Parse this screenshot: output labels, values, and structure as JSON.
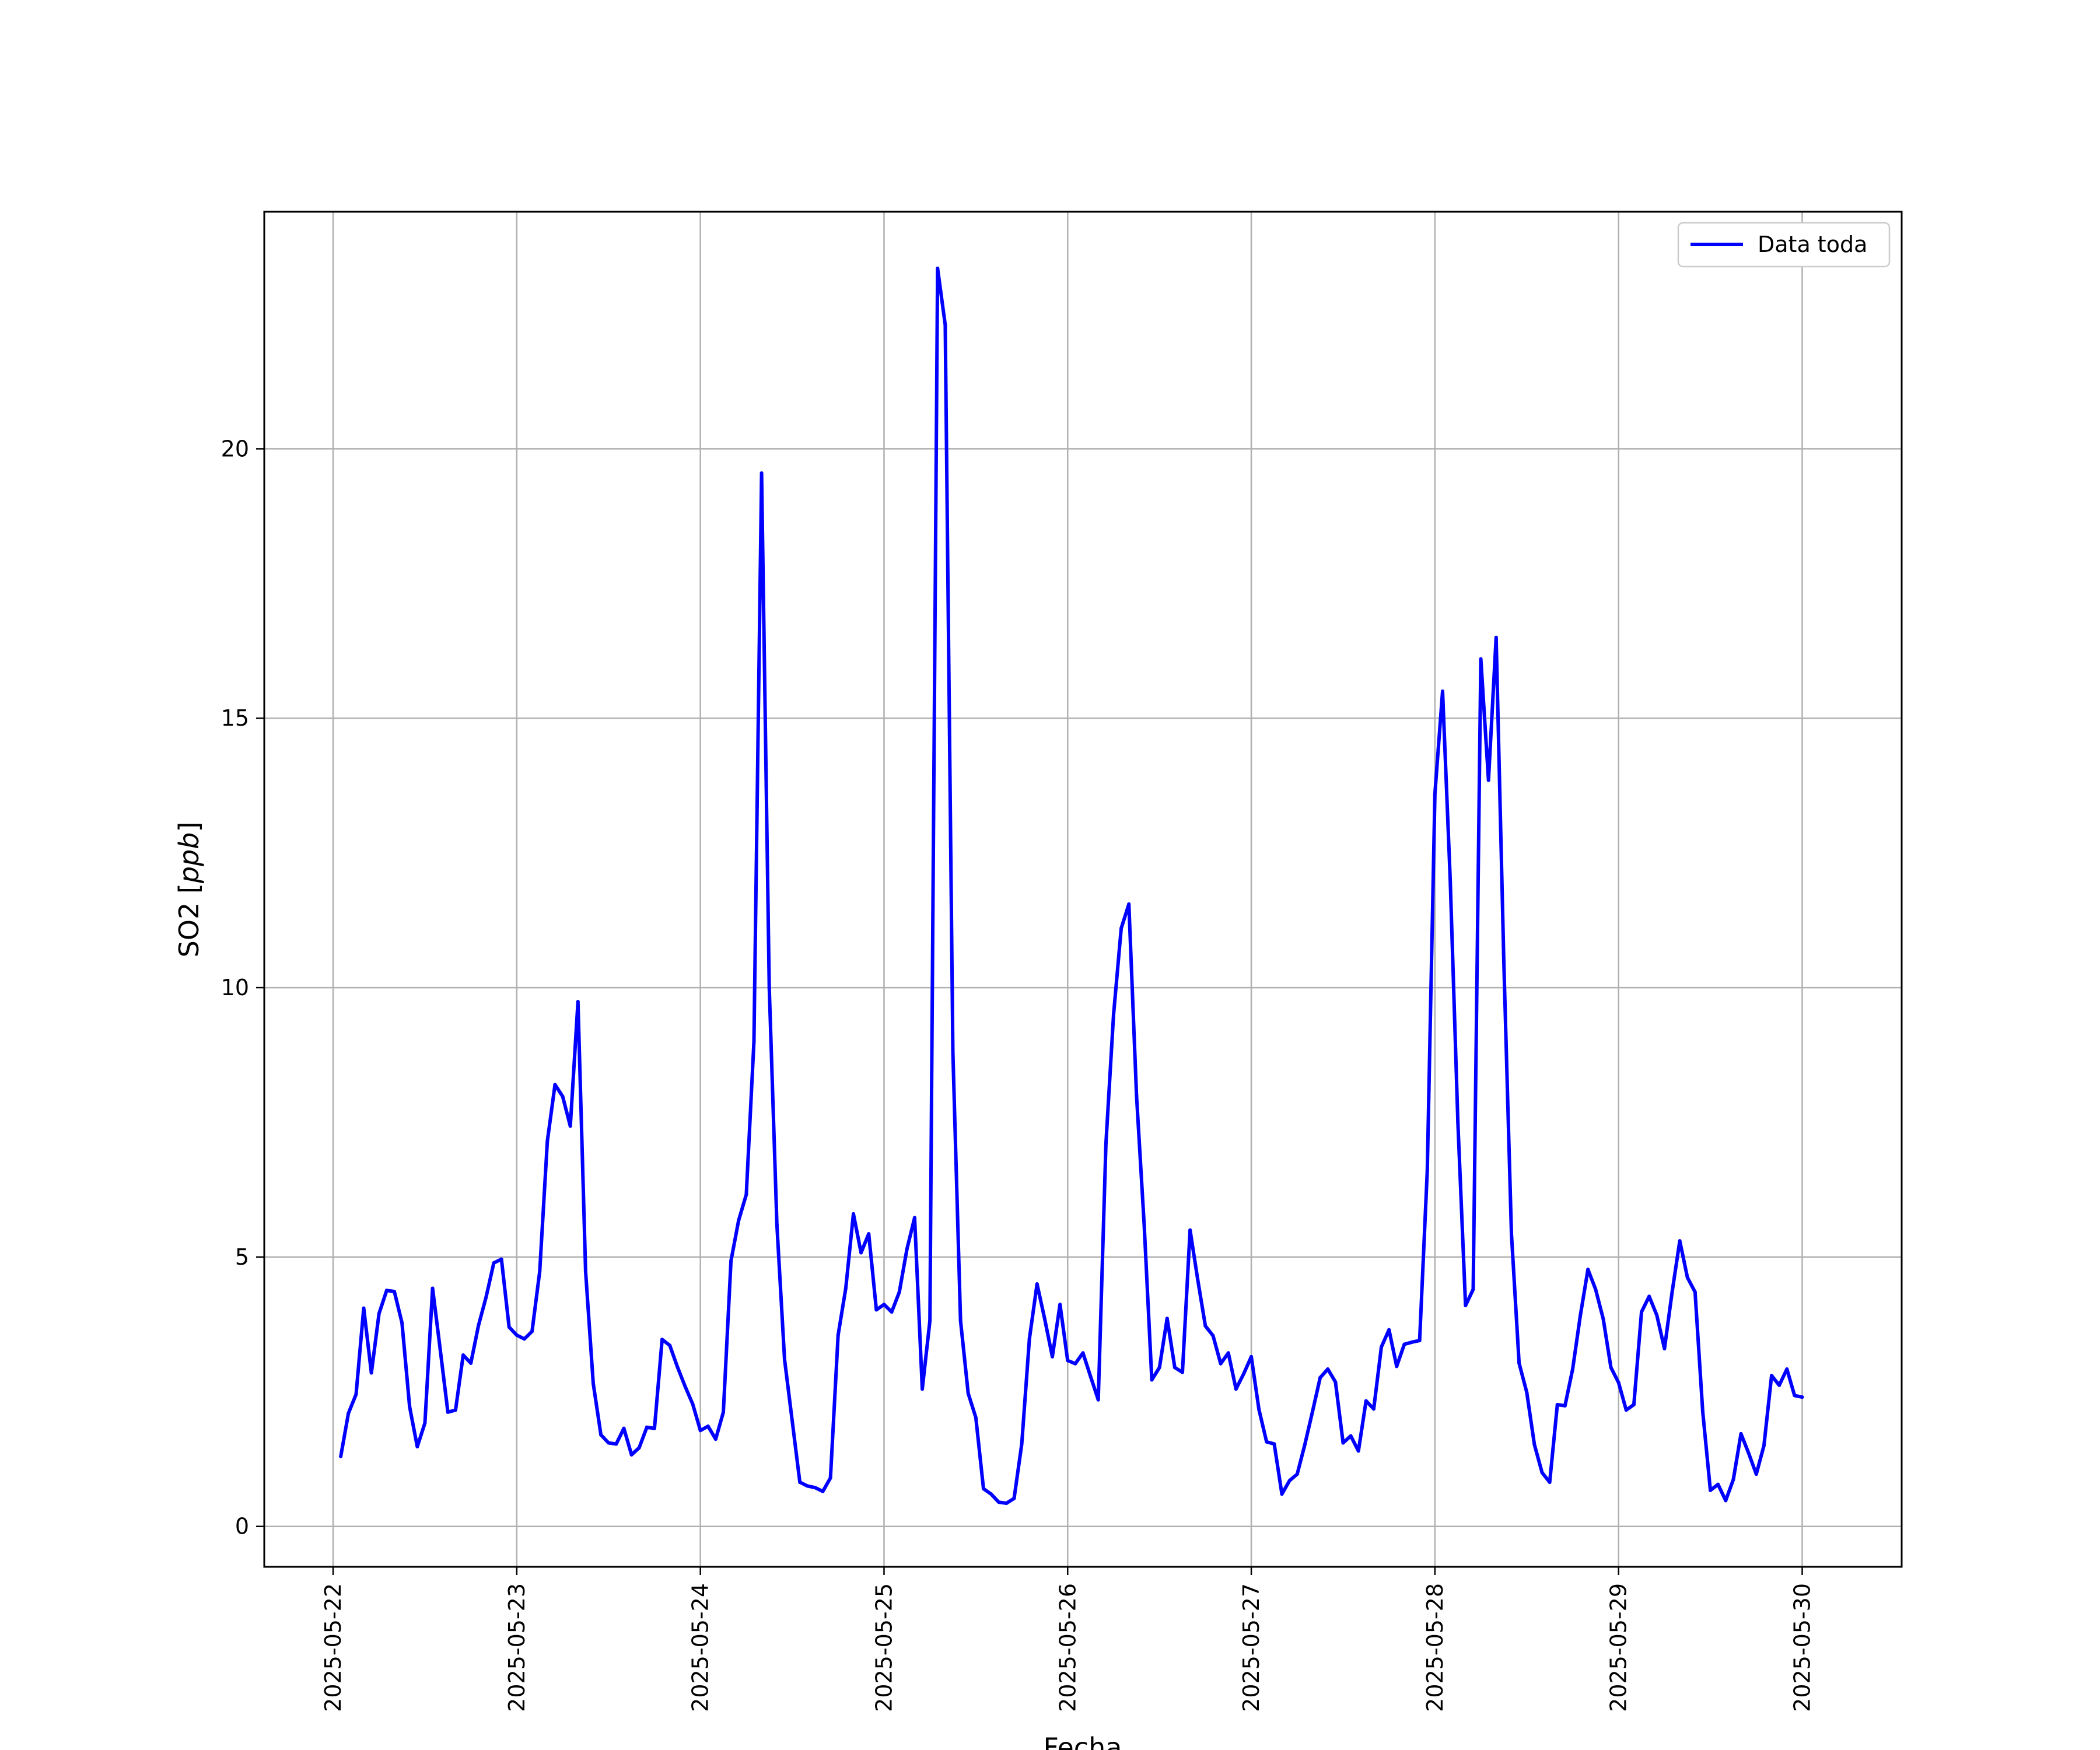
{
  "chart_data": {
    "type": "line",
    "xlabel": "Fecha",
    "ylabel_prefix": "SO2 [",
    "ylabel_unit": "ppb",
    "ylabel_suffix": "]",
    "grid": true,
    "legend_position": "top-right",
    "xlim": [
      "2025-05-21T15:00",
      "2025-05-30T13:00"
    ],
    "ylim": [
      -0.75,
      24.4
    ],
    "x_ticks": [
      "2025-05-22",
      "2025-05-23",
      "2025-05-24",
      "2025-05-25",
      "2025-05-26",
      "2025-05-27",
      "2025-05-28",
      "2025-05-29",
      "2025-05-30"
    ],
    "y_ticks": [
      0,
      5,
      10,
      15,
      20
    ],
    "line_color": "#0000ff",
    "series": [
      {
        "name": "Data toda",
        "start": "2025-05-22T01:00",
        "step_hours": 1,
        "values": [
          1.3,
          2.1,
          2.45,
          4.05,
          2.85,
          3.95,
          4.38,
          4.36,
          3.78,
          2.22,
          1.48,
          1.92,
          4.42,
          3.28,
          2.12,
          2.16,
          3.18,
          3.03,
          3.73,
          4.26,
          4.89,
          4.96,
          3.7,
          3.55,
          3.48,
          3.62,
          4.73,
          7.15,
          8.2,
          7.98,
          7.43,
          9.74,
          4.73,
          2.65,
          1.7,
          1.55,
          1.53,
          1.82,
          1.33,
          1.46,
          1.84,
          1.82,
          3.47,
          3.36,
          2.96,
          2.6,
          2.27,
          1.78,
          1.86,
          1.62,
          2.12,
          4.93,
          5.68,
          6.16,
          9.0,
          19.55,
          10.0,
          5.6,
          3.1,
          1.96,
          0.82,
          0.75,
          0.72,
          0.65,
          0.9,
          3.55,
          4.42,
          5.8,
          5.08,
          5.43,
          4.02,
          4.12,
          3.98,
          4.35,
          5.15,
          5.73,
          2.55,
          3.82,
          23.35,
          22.3,
          8.8,
          3.82,
          2.47,
          2.02,
          0.7,
          0.6,
          0.45,
          0.43,
          0.52,
          1.53,
          3.48,
          4.5,
          3.85,
          3.15,
          4.12,
          3.08,
          3.02,
          3.22,
          2.78,
          2.35,
          7.1,
          9.5,
          11.1,
          11.55,
          8.0,
          5.6,
          2.72,
          2.95,
          3.86,
          2.95,
          2.86,
          5.5,
          4.58,
          3.72,
          3.54,
          3.02,
          3.22,
          2.55,
          2.83,
          3.15,
          2.17,
          1.57,
          1.53,
          0.6,
          0.85,
          0.97,
          1.52,
          2.13,
          2.76,
          2.92,
          2.68,
          1.55,
          1.68,
          1.4,
          2.33,
          2.18,
          3.33,
          3.65,
          2.97,
          3.38,
          3.42,
          3.45,
          6.6,
          13.6,
          15.5,
          12.0,
          7.5,
          4.1,
          4.4,
          16.1,
          13.85,
          16.5,
          10.5,
          5.43,
          3.03,
          2.49,
          1.52,
          1.0,
          0.82,
          2.26,
          2.24,
          2.92,
          3.91,
          4.77,
          4.4,
          3.85,
          2.95,
          2.67,
          2.16,
          2.26,
          3.98,
          4.27,
          3.92,
          3.3,
          4.35,
          5.3,
          4.62,
          4.35,
          2.13,
          0.67,
          0.78,
          0.48,
          0.87,
          1.72,
          1.36,
          0.97,
          1.5,
          2.8,
          2.62,
          2.92,
          2.43,
          2.4
        ]
      }
    ]
  }
}
